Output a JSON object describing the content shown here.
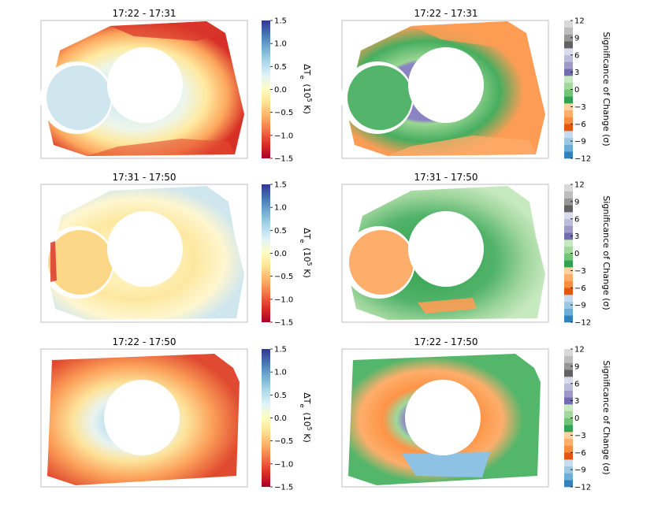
{
  "chart_data": [
    {
      "type": "heatmap",
      "title": "17:22 - 17:31",
      "quantity": "delta_Te",
      "colorbar": {
        "label_symbol": "ΔT",
        "label_sub": "e",
        "label_unit": "(10",
        "label_exp": "5",
        "label_tail": " K)",
        "ticks": [
          "1.5",
          "1.0",
          "0.5",
          "0.0",
          "−0.5",
          "−1.0",
          "−1.5"
        ],
        "vmin": -1.5,
        "vmax": 1.5
      },
      "colormap": "RdYlBu"
    },
    {
      "type": "heatmap",
      "title": "17:22 - 17:31",
      "quantity": "significance",
      "colorbar": {
        "label": "Significance of Change (σ)",
        "ticks": [
          "12",
          "9",
          "6",
          "3",
          "0",
          "−3",
          "−6",
          "−9",
          "−12"
        ],
        "vmin": -12,
        "vmax": 12
      },
      "colormap": "tab20c"
    },
    {
      "type": "heatmap",
      "title": "17:31 - 17:50",
      "quantity": "delta_Te",
      "colorbar": {
        "label_symbol": "ΔT",
        "label_sub": "e",
        "label_unit": "(10",
        "label_exp": "5",
        "label_tail": " K)",
        "ticks": [
          "1.5",
          "1.0",
          "0.5",
          "0.0",
          "−0.5",
          "−1.0",
          "−1.5"
        ],
        "vmin": -1.5,
        "vmax": 1.5
      },
      "colormap": "RdYlBu"
    },
    {
      "type": "heatmap",
      "title": "17:31 - 17:50",
      "quantity": "significance",
      "colorbar": {
        "label": "Significance of Change (σ)",
        "ticks": [
          "12",
          "9",
          "6",
          "3",
          "0",
          "−3",
          "−6",
          "−9",
          "−12"
        ],
        "vmin": -12,
        "vmax": 12
      },
      "colormap": "tab20c"
    },
    {
      "type": "heatmap",
      "title": "17:22 - 17:50",
      "quantity": "delta_Te",
      "colorbar": {
        "label_symbol": "ΔT",
        "label_sub": "e",
        "label_unit": "(10",
        "label_exp": "5",
        "label_tail": " K)",
        "ticks": [
          "1.5",
          "1.0",
          "0.5",
          "0.0",
          "−0.5",
          "−1.0",
          "−1.5"
        ],
        "vmin": -1.5,
        "vmax": 1.5
      },
      "colormap": "RdYlBu"
    },
    {
      "type": "heatmap",
      "title": "17:22 - 17:50",
      "quantity": "significance",
      "colorbar": {
        "label": "Significance of Change (σ)",
        "ticks": [
          "12",
          "9",
          "6",
          "3",
          "0",
          "−3",
          "−6",
          "−9",
          "−12"
        ],
        "vmin": -12,
        "vmax": 12
      },
      "colormap": "tab20c"
    }
  ],
  "colors": {
    "rdylbu": [
      "#a50026",
      "#d73027",
      "#f46d43",
      "#fdae61",
      "#fee090",
      "#ffffbf",
      "#e0f3f8",
      "#abd9e9",
      "#74add1",
      "#4575b4",
      "#313695"
    ],
    "significance": [
      "#3182bd",
      "#6baed6",
      "#9ecae1",
      "#c6dbef",
      "#e6550d",
      "#fd8d3c",
      "#fdae6b",
      "#fdd0a2",
      "#31a354",
      "#74c476",
      "#a1d99b",
      "#c7e9c0",
      "#756bb1",
      "#9e9ac8",
      "#bcbddc",
      "#dadaeb",
      "#636363",
      "#969696",
      "#bdbdbd",
      "#d9d9d9"
    ]
  }
}
